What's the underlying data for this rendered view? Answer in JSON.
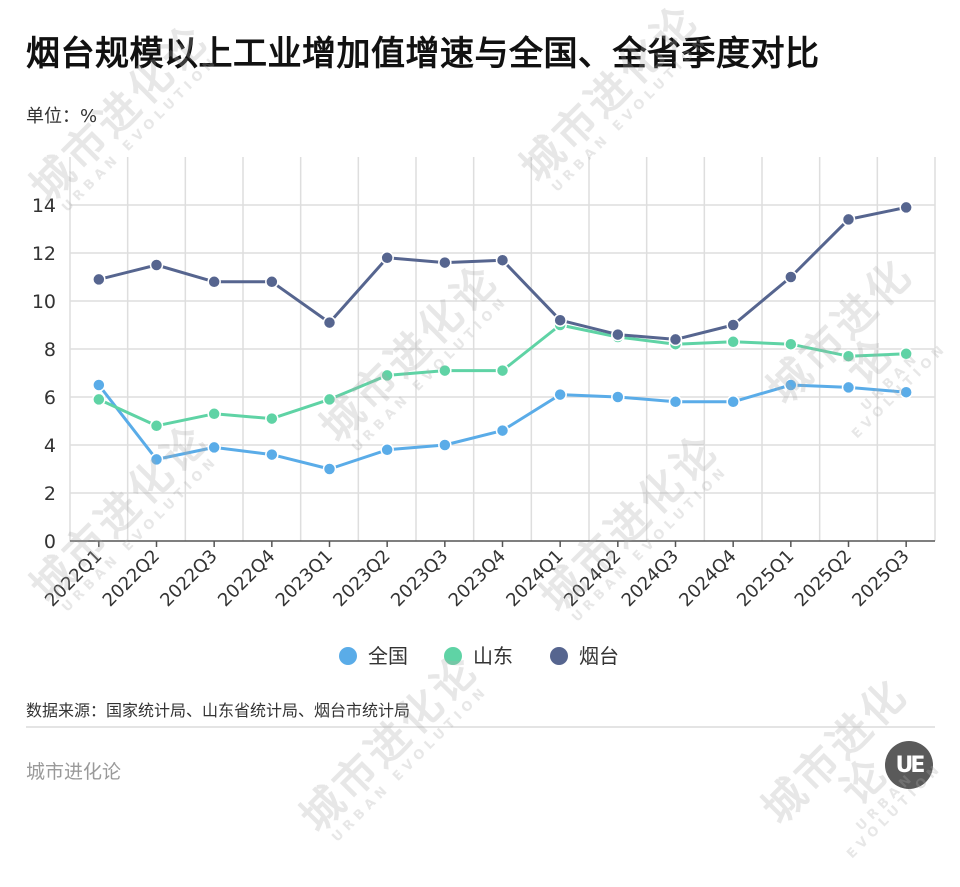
{
  "title": "烟台规模以上工业增加值增速与全国、全省季度对比",
  "unit_label": "单位：%",
  "source": "数据来源：国家统计局、山东省统计局、烟台市统计局",
  "brand": "城市进化论",
  "logo_text": "UE",
  "watermark": {
    "cn": "城市进化论",
    "en": "URBAN EVOLUTION"
  },
  "legend": [
    {
      "label": "全国",
      "color": "#5aace8"
    },
    {
      "label": "山东",
      "color": "#5fd3a5"
    },
    {
      "label": "烟台",
      "color": "#56658f"
    }
  ],
  "chart_data": {
    "type": "line",
    "title": "烟台规模以上工业增加值增速与全国、全省季度对比",
    "xlabel": "",
    "ylabel": "单位：%",
    "ylim": [
      0,
      16
    ],
    "yticks": [
      0,
      2,
      4,
      6,
      8,
      10,
      12,
      14
    ],
    "grid": true,
    "legend_position": "bottom",
    "categories": [
      "2022Q1",
      "2022Q2",
      "2022Q3",
      "2022Q4",
      "2023Q1",
      "2023Q2",
      "2023Q3",
      "2023Q4",
      "2024Q1",
      "2024Q2",
      "2024Q3",
      "2024Q4",
      "2025Q1",
      "2025Q2",
      "2025Q3"
    ],
    "series": [
      {
        "name": "全国",
        "color": "#5aace8",
        "values": [
          6.5,
          3.4,
          3.9,
          3.6,
          3.0,
          3.8,
          4.0,
          4.6,
          6.1,
          6.0,
          5.8,
          5.8,
          6.5,
          6.4,
          6.2
        ]
      },
      {
        "name": "山东",
        "color": "#5fd3a5",
        "values": [
          5.9,
          4.8,
          5.3,
          5.1,
          5.9,
          6.9,
          7.1,
          7.1,
          9.0,
          8.5,
          8.2,
          8.3,
          8.2,
          7.7,
          7.8
        ]
      },
      {
        "name": "烟台",
        "color": "#56658f",
        "values": [
          10.9,
          11.5,
          10.8,
          10.8,
          9.1,
          11.8,
          11.6,
          11.7,
          9.2,
          8.6,
          8.4,
          9.0,
          11.0,
          13.4,
          13.9
        ]
      }
    ]
  }
}
